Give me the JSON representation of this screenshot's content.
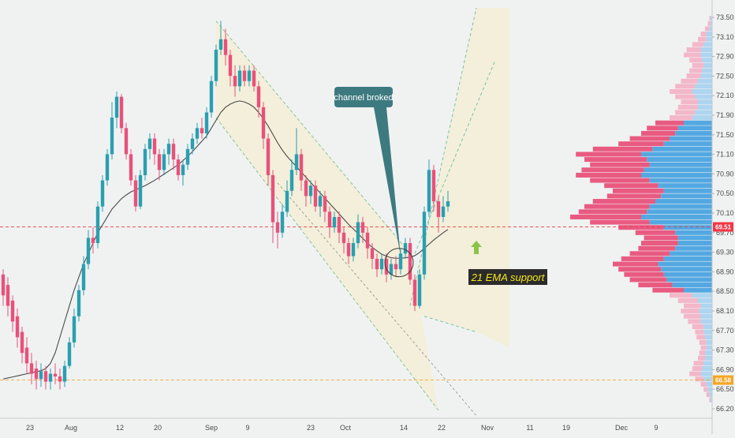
{
  "chart_data": {
    "type": "candlestick",
    "colors": {
      "up": "#2a9fb0",
      "down": "#e8517a",
      "ema": "#4a4a4a",
      "channel_line": "#7cc08a",
      "channel_fill": "#f3efd6",
      "profile_blue": "#4aa3e0",
      "profile_blue_light": "#a9d3ef",
      "profile_pink": "#e8517a",
      "profile_pink_light": "#f2b3c6",
      "current_price": "#f23645",
      "support_level": "#f5a623",
      "callout": "#3d7a80",
      "annotation_bg": "#2b2b2b",
      "arrow": "#8bc34a"
    },
    "price_axis": {
      "ylim": [
        66.0,
        73.7
      ],
      "ticks": [
        "73.50",
        "73.10",
        "72.90",
        "72.50",
        "72.10",
        "71.90",
        "71.50",
        "71.10",
        "70.90",
        "70.50",
        "70.10",
        "69.70",
        "69.30",
        "68.90",
        "68.50",
        "68.10",
        "67.70",
        "67.30",
        "66.90",
        "66.50",
        "66.20"
      ]
    },
    "date_labels": [
      "23",
      "Aug",
      "12",
      "20",
      "Sep",
      "9",
      "23",
      "Oct",
      "14",
      "22",
      "Nov",
      "11",
      "19",
      "Dec",
      "9"
    ],
    "current_price": {
      "value": 69.51,
      "label": "69.51"
    },
    "support_level": {
      "value": 66.58,
      "label": "66.58"
    },
    "candles": [
      [
        68.6,
        68.2,
        68.7,
        68.0
      ],
      [
        68.4,
        68.0,
        68.55,
        67.8
      ],
      [
        68.1,
        67.7,
        68.2,
        67.5
      ],
      [
        67.8,
        67.4,
        67.95,
        67.2
      ],
      [
        67.5,
        67.1,
        67.6,
        66.9
      ],
      [
        67.2,
        66.9,
        67.4,
        66.7
      ],
      [
        66.9,
        66.7,
        67.1,
        66.5
      ],
      [
        66.8,
        66.6,
        66.95,
        66.4
      ],
      [
        66.6,
        66.75,
        66.9,
        66.45
      ],
      [
        66.75,
        66.55,
        66.85,
        66.4
      ],
      [
        66.55,
        66.7,
        66.8,
        66.4
      ],
      [
        66.7,
        66.65,
        66.9,
        66.5
      ],
      [
        66.65,
        66.55,
        66.8,
        66.4
      ],
      [
        66.55,
        66.85,
        66.95,
        66.45
      ],
      [
        66.85,
        67.3,
        67.4,
        66.8
      ],
      [
        67.3,
        67.8,
        67.95,
        67.2
      ],
      [
        67.8,
        68.3,
        68.4,
        67.7
      ],
      [
        68.3,
        68.8,
        68.95,
        68.2
      ],
      [
        68.8,
        69.3,
        69.45,
        68.7
      ],
      [
        69.3,
        69.2,
        69.5,
        69.0
      ],
      [
        69.2,
        69.9,
        70.0,
        69.1
      ],
      [
        69.9,
        70.4,
        70.5,
        69.8
      ],
      [
        70.4,
        70.9,
        71.0,
        70.3
      ],
      [
        70.9,
        71.6,
        71.9,
        70.8
      ],
      [
        71.6,
        72.0,
        72.1,
        71.4
      ],
      [
        72.0,
        71.4,
        72.05,
        71.3
      ],
      [
        71.4,
        70.9,
        71.5,
        70.8
      ],
      [
        70.9,
        70.4,
        71.0,
        70.3
      ],
      [
        70.4,
        69.9,
        70.5,
        69.8
      ],
      [
        69.9,
        70.5,
        70.6,
        69.85
      ],
      [
        70.5,
        71.0,
        71.1,
        70.4
      ],
      [
        71.0,
        71.2,
        71.3,
        70.8
      ],
      [
        71.2,
        70.9,
        71.3,
        70.7
      ],
      [
        70.9,
        70.6,
        71.0,
        70.4
      ],
      [
        70.6,
        70.9,
        71.0,
        70.5
      ],
      [
        70.9,
        71.1,
        71.2,
        70.7
      ],
      [
        71.1,
        70.8,
        71.2,
        70.6
      ],
      [
        70.8,
        70.5,
        70.9,
        70.4
      ],
      [
        70.5,
        70.7,
        70.8,
        70.3
      ],
      [
        70.7,
        71.0,
        71.1,
        70.6
      ],
      [
        71.0,
        71.2,
        71.3,
        70.9
      ],
      [
        71.2,
        71.4,
        71.5,
        71.1
      ],
      [
        71.4,
        71.3,
        71.6,
        71.2
      ],
      [
        71.3,
        71.7,
        71.8,
        71.2
      ],
      [
        71.7,
        72.3,
        72.4,
        71.6
      ],
      [
        72.3,
        72.9,
        73.0,
        72.2
      ],
      [
        72.9,
        73.1,
        73.45,
        72.8
      ],
      [
        73.1,
        72.8,
        73.3,
        72.6
      ],
      [
        72.8,
        72.4,
        72.9,
        72.2
      ],
      [
        72.4,
        72.2,
        72.6,
        72.0
      ],
      [
        72.2,
        72.5,
        72.6,
        72.1
      ],
      [
        72.5,
        72.3,
        72.6,
        72.2
      ],
      [
        72.3,
        72.5,
        72.6,
        72.2
      ],
      [
        72.5,
        72.2,
        72.6,
        72.1
      ],
      [
        72.2,
        71.8,
        72.3,
        71.6
      ],
      [
        71.8,
        71.2,
        71.9,
        71.0
      ],
      [
        71.2,
        70.5,
        71.3,
        70.3
      ],
      [
        70.5,
        69.6,
        70.6,
        69.2
      ],
      [
        69.6,
        69.4,
        69.8,
        69.1
      ],
      [
        69.4,
        69.8,
        69.95,
        69.3
      ],
      [
        69.8,
        70.2,
        70.4,
        69.7
      ],
      [
        70.2,
        70.6,
        70.8,
        70.1
      ],
      [
        70.6,
        70.9,
        71.4,
        70.5
      ],
      [
        70.9,
        70.4,
        71.0,
        70.2
      ],
      [
        70.4,
        70.1,
        70.5,
        69.9
      ],
      [
        70.1,
        70.3,
        70.4,
        69.95
      ],
      [
        70.3,
        69.9,
        70.4,
        69.8
      ],
      [
        69.9,
        70.1,
        70.2,
        69.7
      ],
      [
        70.1,
        69.8,
        70.2,
        69.6
      ],
      [
        69.8,
        69.5,
        69.9,
        69.3
      ],
      [
        69.5,
        69.7,
        69.8,
        69.4
      ],
      [
        69.7,
        69.4,
        69.8,
        69.2
      ],
      [
        69.4,
        69.2,
        69.5,
        69.0
      ],
      [
        69.2,
        68.95,
        69.3,
        68.8
      ],
      [
        68.95,
        69.2,
        69.3,
        68.85
      ],
      [
        69.2,
        69.6,
        69.75,
        69.1
      ],
      [
        69.6,
        69.4,
        69.7,
        69.2
      ],
      [
        69.4,
        69.1,
        69.5,
        68.9
      ],
      [
        69.1,
        68.9,
        69.2,
        68.7
      ],
      [
        68.9,
        68.7,
        69.0,
        68.55
      ],
      [
        68.7,
        68.9,
        69.0,
        68.6
      ],
      [
        68.9,
        68.6,
        69.0,
        68.45
      ],
      [
        68.6,
        68.8,
        68.9,
        68.5
      ],
      [
        68.8,
        68.7,
        68.95,
        68.55
      ],
      [
        68.7,
        69.0,
        69.1,
        68.6
      ],
      [
        69.0,
        69.2,
        69.3,
        68.9
      ],
      [
        69.2,
        68.5,
        69.3,
        68.4
      ],
      [
        68.5,
        68.0,
        68.6,
        67.9
      ],
      [
        68.0,
        68.6,
        68.7,
        67.95
      ],
      [
        68.6,
        69.8,
        69.9,
        68.5
      ],
      [
        69.8,
        70.6,
        70.8,
        69.7
      ],
      [
        70.6,
        70.0,
        70.7,
        69.8
      ],
      [
        70.0,
        69.7,
        70.1,
        69.4
      ],
      [
        69.7,
        69.9,
        70.1,
        69.6
      ],
      [
        69.9,
        70.0,
        70.2,
        69.8
      ]
    ],
    "ema21": [
      66.6,
      66.62,
      66.64,
      66.66,
      66.68,
      66.7,
      66.72,
      66.74,
      66.76,
      66.8,
      66.9,
      67.1,
      67.4,
      67.7,
      68.0,
      68.3,
      68.55,
      68.8,
      69.0,
      69.2,
      69.4,
      69.55,
      69.7,
      69.85,
      69.95,
      70.05,
      70.12,
      70.18,
      70.22,
      70.26,
      70.3,
      70.35,
      70.4,
      70.46,
      70.52,
      70.58,
      70.64,
      70.7,
      70.78,
      70.86,
      70.95,
      71.05,
      71.15,
      71.25,
      71.4,
      71.55,
      71.7,
      71.8,
      71.86,
      71.9,
      71.92,
      71.9,
      71.86,
      71.8,
      71.7,
      71.58,
      71.44,
      71.28,
      71.12,
      70.98,
      70.86,
      70.76,
      70.66,
      70.56,
      70.46,
      70.36,
      70.26,
      70.16,
      70.06,
      69.96,
      69.86,
      69.76,
      69.66,
      69.56,
      69.47,
      69.38,
      69.29,
      69.2,
      69.12,
      69.05,
      68.99,
      68.95,
      68.92,
      68.91,
      68.91,
      68.92,
      68.93,
      68.96,
      69.02,
      69.1,
      69.18,
      69.26,
      69.33,
      69.4,
      69.46
    ],
    "volume_profile": [
      [
        66.2,
        0.02,
        0.01,
        false
      ],
      [
        66.3,
        0.04,
        0.02,
        false
      ],
      [
        66.4,
        0.06,
        0.03,
        false
      ],
      [
        66.5,
        0.08,
        0.04,
        false
      ],
      [
        66.6,
        0.12,
        0.06,
        false
      ],
      [
        66.7,
        0.16,
        0.08,
        false
      ],
      [
        66.8,
        0.14,
        0.07,
        false
      ],
      [
        66.9,
        0.13,
        0.06,
        false
      ],
      [
        67.0,
        0.1,
        0.05,
        false
      ],
      [
        67.1,
        0.09,
        0.05,
        false
      ],
      [
        67.2,
        0.08,
        0.04,
        false
      ],
      [
        67.3,
        0.09,
        0.04,
        false
      ],
      [
        67.4,
        0.11,
        0.05,
        false
      ],
      [
        67.5,
        0.12,
        0.06,
        false
      ],
      [
        67.6,
        0.14,
        0.06,
        false
      ],
      [
        67.7,
        0.17,
        0.08,
        false
      ],
      [
        67.8,
        0.2,
        0.08,
        false
      ],
      [
        67.9,
        0.22,
        0.09,
        false
      ],
      [
        68.0,
        0.2,
        0.08,
        false
      ],
      [
        68.1,
        0.24,
        0.1,
        false
      ],
      [
        68.2,
        0.3,
        0.14,
        false
      ],
      [
        68.3,
        0.42,
        0.2,
        true
      ],
      [
        68.4,
        0.52,
        0.28,
        true
      ],
      [
        68.5,
        0.58,
        0.32,
        true
      ],
      [
        68.6,
        0.62,
        0.34,
        true
      ],
      [
        68.7,
        0.66,
        0.36,
        true
      ],
      [
        68.8,
        0.7,
        0.38,
        true
      ],
      [
        68.9,
        0.64,
        0.34,
        true
      ],
      [
        69.0,
        0.58,
        0.3,
        true
      ],
      [
        69.1,
        0.52,
        0.26,
        true
      ],
      [
        69.2,
        0.5,
        0.24,
        true
      ],
      [
        69.3,
        0.48,
        0.24,
        true
      ],
      [
        69.4,
        0.54,
        0.26,
        true
      ],
      [
        69.5,
        0.66,
        0.34,
        true
      ],
      [
        69.6,
        0.86,
        0.44,
        true
      ],
      [
        69.7,
        1.0,
        0.5,
        true
      ],
      [
        69.8,
        0.94,
        0.46,
        true
      ],
      [
        69.9,
        0.9,
        0.44,
        true
      ],
      [
        70.0,
        0.84,
        0.4,
        true
      ],
      [
        70.1,
        0.74,
        0.36,
        true
      ],
      [
        70.2,
        0.7,
        0.34,
        true
      ],
      [
        70.3,
        0.76,
        0.38,
        true
      ],
      [
        70.4,
        0.86,
        0.44,
        true
      ],
      [
        70.5,
        0.96,
        0.5,
        true
      ],
      [
        70.6,
        0.92,
        0.48,
        true
      ],
      [
        70.7,
        0.86,
        0.44,
        true
      ],
      [
        70.8,
        0.9,
        0.46,
        true
      ],
      [
        70.9,
        0.96,
        0.5,
        true
      ],
      [
        71.0,
        0.84,
        0.42,
        true
      ],
      [
        71.1,
        0.66,
        0.34,
        true
      ],
      [
        71.2,
        0.58,
        0.3,
        true
      ],
      [
        71.3,
        0.5,
        0.26,
        true
      ],
      [
        71.4,
        0.46,
        0.24,
        true
      ],
      [
        71.5,
        0.4,
        0.2,
        true
      ],
      [
        71.6,
        0.3,
        0.14,
        false
      ],
      [
        71.7,
        0.26,
        0.12,
        false
      ],
      [
        71.8,
        0.24,
        0.1,
        false
      ],
      [
        71.9,
        0.22,
        0.1,
        false
      ],
      [
        72.0,
        0.26,
        0.12,
        false
      ],
      [
        72.1,
        0.3,
        0.14,
        false
      ],
      [
        72.2,
        0.26,
        0.12,
        false
      ],
      [
        72.3,
        0.22,
        0.1,
        false
      ],
      [
        72.4,
        0.18,
        0.08,
        false
      ],
      [
        72.5,
        0.16,
        0.07,
        false
      ],
      [
        72.6,
        0.14,
        0.06,
        false
      ],
      [
        72.7,
        0.16,
        0.07,
        false
      ],
      [
        72.8,
        0.2,
        0.08,
        false
      ],
      [
        72.9,
        0.18,
        0.08,
        false
      ],
      [
        73.0,
        0.14,
        0.06,
        false
      ],
      [
        73.1,
        0.1,
        0.04,
        false
      ],
      [
        73.2,
        0.08,
        0.04,
        false
      ],
      [
        73.3,
        0.05,
        0.02,
        false
      ],
      [
        73.4,
        0.03,
        0.01,
        false
      ],
      [
        73.5,
        0.02,
        0.01,
        false
      ]
    ],
    "down_channel": {
      "upper": [
        [
          45,
          73.45
        ],
        [
          86,
          69.0
        ]
      ],
      "lower": [
        [
          45,
          71.6
        ],
        [
          92,
          66.0
        ]
      ]
    },
    "up_channel": {
      "upper": [
        [
          86,
          68.0
        ],
        [
          100,
          73.7
        ]
      ],
      "middle": [
        [
          87,
          69.0
        ],
        [
          104,
          72.7
        ]
      ],
      "lower": [
        [
          89,
          67.8
        ],
        [
          100,
          67.5
        ]
      ]
    },
    "annotations": {
      "callout": {
        "text": "channel broked",
        "target": [
          84,
          68.95
        ]
      },
      "support_note": {
        "text": "21 EMA support"
      }
    }
  }
}
